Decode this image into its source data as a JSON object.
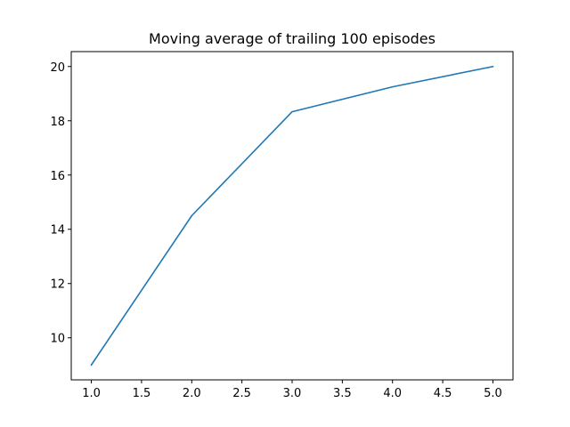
{
  "chart_data": {
    "type": "line",
    "title": "Moving average of trailing 100 episodes",
    "xlabel": "",
    "ylabel": "",
    "x": [
      1.0,
      2.0,
      3.0,
      4.0,
      5.0
    ],
    "series": [
      {
        "values": [
          9.0,
          14.5,
          18.333,
          19.25,
          20.0
        ]
      }
    ],
    "xlim": [
      0.8,
      5.2
    ],
    "ylim": [
      8.45,
      20.55
    ],
    "xticks": [
      1.0,
      1.5,
      2.0,
      2.5,
      3.0,
      3.5,
      4.0,
      4.5,
      5.0
    ],
    "xtick_labels": [
      "1.0",
      "1.5",
      "2.0",
      "2.5",
      "3.0",
      "3.5",
      "4.0",
      "4.5",
      "5.0"
    ],
    "yticks": [
      10,
      12,
      14,
      16,
      18,
      20
    ],
    "ytick_labels": [
      "10",
      "12",
      "14",
      "16",
      "18",
      "20"
    ],
    "grid": false,
    "line_color": "#1f77b4"
  }
}
